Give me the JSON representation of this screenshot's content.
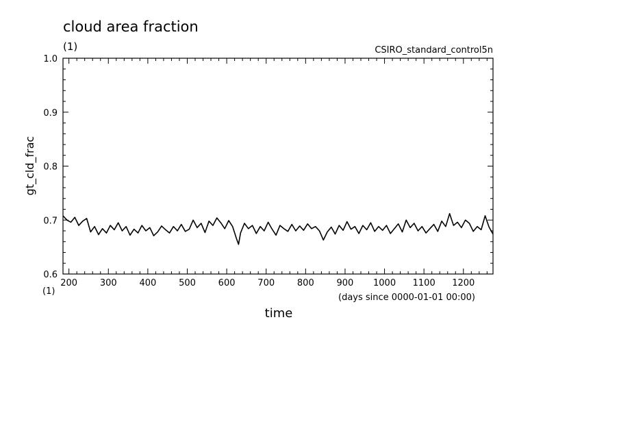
{
  "chart_data": {
    "type": "line",
    "title": "cloud area fraction",
    "subtitle": "(1)",
    "run_label": "CSIRO_standard_control5n",
    "xlabel": "time",
    "x_units": "(days since 0000-01-01 00:00)",
    "ylabel": "gt_cld_frac",
    "y_units": "(1)",
    "xlim": [
      185,
      1275
    ],
    "ylim": [
      0.6,
      1.0
    ],
    "x_ticks": [
      "200",
      "300",
      "400",
      "500",
      "600",
      "700",
      "800",
      "900",
      "1000",
      "1100",
      "1200"
    ],
    "y_ticks": [
      "0.6",
      "0.7",
      "0.8",
      "0.9",
      "1.0"
    ],
    "grid": false,
    "line_color": "#000000",
    "series": [
      {
        "x": [
          185,
          195,
          205,
          215,
          225,
          235,
          245,
          255,
          265,
          275,
          285,
          295,
          305,
          315,
          325,
          335,
          345,
          355,
          365,
          375,
          385,
          395,
          405,
          415,
          425,
          435,
          445,
          455,
          465,
          475,
          485,
          495,
          505,
          515,
          525,
          535,
          545,
          555,
          565,
          575,
          585,
          595,
          605,
          615,
          625,
          630,
          635,
          645,
          655,
          665,
          675,
          685,
          695,
          705,
          715,
          725,
          735,
          745,
          755,
          765,
          775,
          785,
          795,
          805,
          815,
          825,
          835,
          845,
          855,
          865,
          875,
          885,
          895,
          905,
          915,
          925,
          935,
          945,
          955,
          965,
          975,
          985,
          995,
          1005,
          1015,
          1025,
          1035,
          1045,
          1055,
          1065,
          1075,
          1085,
          1095,
          1105,
          1115,
          1125,
          1135,
          1145,
          1155,
          1165,
          1175,
          1185,
          1195,
          1205,
          1215,
          1225,
          1235,
          1245,
          1255,
          1265,
          1275
        ],
        "y": [
          0.708,
          0.7,
          0.696,
          0.705,
          0.69,
          0.698,
          0.703,
          0.678,
          0.688,
          0.673,
          0.684,
          0.676,
          0.69,
          0.682,
          0.695,
          0.68,
          0.688,
          0.672,
          0.683,
          0.676,
          0.69,
          0.68,
          0.686,
          0.671,
          0.678,
          0.689,
          0.682,
          0.676,
          0.688,
          0.68,
          0.692,
          0.679,
          0.683,
          0.7,
          0.686,
          0.694,
          0.677,
          0.698,
          0.69,
          0.704,
          0.695,
          0.684,
          0.699,
          0.688,
          0.665,
          0.655,
          0.676,
          0.694,
          0.684,
          0.69,
          0.675,
          0.688,
          0.68,
          0.696,
          0.683,
          0.672,
          0.69,
          0.684,
          0.679,
          0.692,
          0.68,
          0.689,
          0.681,
          0.693,
          0.684,
          0.688,
          0.68,
          0.663,
          0.678,
          0.687,
          0.674,
          0.69,
          0.681,
          0.697,
          0.683,
          0.688,
          0.675,
          0.69,
          0.682,
          0.695,
          0.679,
          0.688,
          0.681,
          0.69,
          0.675,
          0.684,
          0.693,
          0.678,
          0.7,
          0.686,
          0.694,
          0.68,
          0.688,
          0.676,
          0.684,
          0.692,
          0.679,
          0.698,
          0.688,
          0.712,
          0.69,
          0.696,
          0.686,
          0.7,
          0.694,
          0.679,
          0.688,
          0.682,
          0.708,
          0.687,
          0.674
        ]
      }
    ]
  }
}
